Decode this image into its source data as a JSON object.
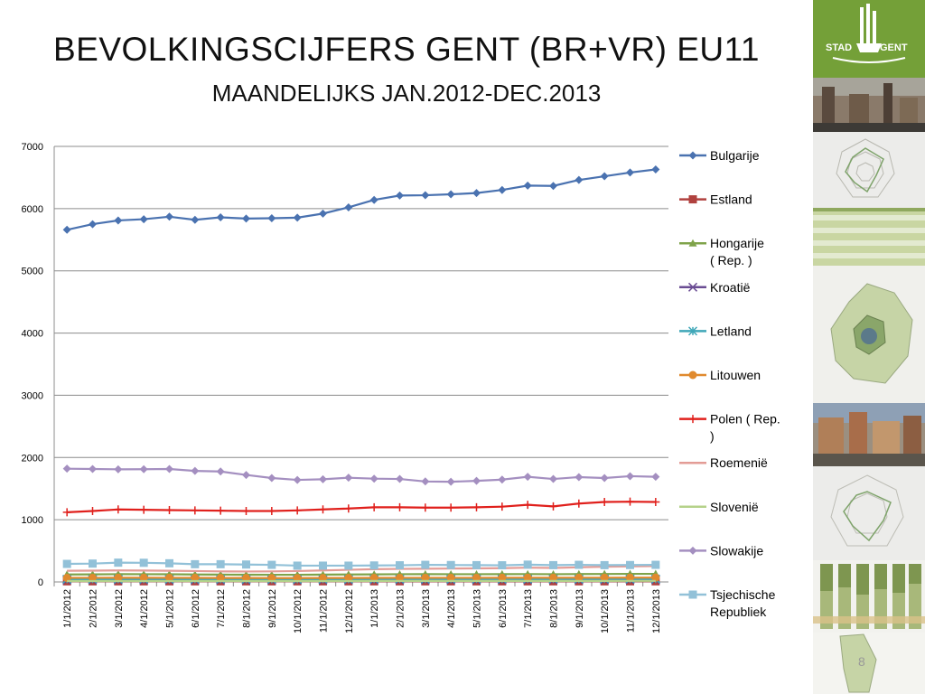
{
  "slide": {
    "title": "BEVOLKINGSCIJFERS GENT (BR+VR) EU11",
    "subtitle": "MAANDELIJKS JAN.2012-DEC.2013",
    "page_number": "8",
    "logo_text": "STAD GENT"
  },
  "chart_data": {
    "type": "line",
    "title": "",
    "xlabel": "",
    "ylabel": "",
    "ylim": [
      0,
      7000
    ],
    "yticks": [
      0,
      1000,
      2000,
      3000,
      4000,
      5000,
      6000,
      7000
    ],
    "grid": "horizontal",
    "legend_position": "right",
    "categories": [
      "1/1/2012",
      "2/1/2012",
      "3/1/2012",
      "4/1/2012",
      "5/1/2012",
      "6/1/2012",
      "7/1/2012",
      "8/1/2012",
      "9/1/2012",
      "10/1/2012",
      "11/1/2012",
      "12/1/2012",
      "1/1/2013",
      "2/1/2013",
      "3/1/2013",
      "4/1/2013",
      "5/1/2013",
      "6/1/2013",
      "7/1/2013",
      "8/1/2013",
      "9/1/2013",
      "10/1/2013",
      "11/1/2013",
      "12/1/2013"
    ],
    "series": [
      {
        "name": "Bulgarije",
        "color": "#4a72b0",
        "marker": "diamond",
        "values": [
          5660,
          5750,
          5810,
          5830,
          5870,
          5820,
          5860,
          5840,
          5845,
          5855,
          5920,
          6020,
          6140,
          6210,
          6215,
          6230,
          6250,
          6300,
          6370,
          6365,
          6460,
          6520,
          6580,
          6630
        ]
      },
      {
        "name": "Estland",
        "color": "#b0413e",
        "marker": "square",
        "values": [
          10,
          10,
          10,
          10,
          10,
          10,
          10,
          10,
          10,
          10,
          10,
          10,
          10,
          10,
          10,
          10,
          10,
          10,
          10,
          10,
          10,
          10,
          10,
          10
        ]
      },
      {
        "name": "Hongarije ( Rep. )",
        "color": "#7fa34a",
        "marker": "triangle",
        "values": [
          120,
          122,
          125,
          124,
          123,
          120,
          118,
          116,
          115,
          115,
          118,
          120,
          122,
          124,
          125,
          124,
          124,
          125,
          126,
          124,
          127,
          128,
          130,
          130
        ]
      },
      {
        "name": "Kroatië",
        "color": "#6a4c93",
        "marker": "x",
        "values": [
          30,
          30,
          31,
          31,
          31,
          30,
          30,
          30,
          30,
          30,
          30,
          31,
          31,
          32,
          32,
          32,
          32,
          33,
          33,
          33,
          34,
          34,
          35,
          35
        ]
      },
      {
        "name": "Letland",
        "color": "#3fa7b8",
        "marker": "asterisk",
        "values": [
          45,
          45,
          46,
          46,
          46,
          45,
          45,
          44,
          44,
          44,
          45,
          45,
          46,
          46,
          46,
          46,
          47,
          47,
          47,
          47,
          48,
          48,
          48,
          48
        ]
      },
      {
        "name": "Litouwen",
        "color": "#e08a2e",
        "marker": "circle",
        "values": [
          65,
          66,
          67,
          67,
          66,
          65,
          64,
          63,
          62,
          62,
          63,
          64,
          65,
          66,
          66,
          66,
          66,
          67,
          68,
          67,
          68,
          68,
          69,
          70
        ]
      },
      {
        "name": "Polen ( Rep. )",
        "color": "#e0201c",
        "marker": "plus",
        "values": [
          1120,
          1140,
          1165,
          1160,
          1155,
          1150,
          1145,
          1140,
          1140,
          1150,
          1165,
          1180,
          1200,
          1200,
          1195,
          1195,
          1200,
          1210,
          1240,
          1215,
          1260,
          1285,
          1290,
          1285
        ]
      },
      {
        "name": "Roemenië",
        "color": "#e39c96",
        "marker": "none",
        "values": [
          180,
          182,
          185,
          183,
          180,
          175,
          170,
          168,
          170,
          175,
          185,
          195,
          205,
          210,
          212,
          215,
          218,
          222,
          230,
          225,
          235,
          245,
          250,
          255
        ]
      },
      {
        "name": "Slovenië",
        "color": "#b5d28a",
        "marker": "none",
        "values": [
          15,
          15,
          15,
          15,
          15,
          15,
          15,
          15,
          15,
          15,
          15,
          15,
          16,
          16,
          16,
          16,
          16,
          16,
          16,
          16,
          16,
          16,
          17,
          17
        ]
      },
      {
        "name": "Slowakije",
        "color": "#a48fc0",
        "marker": "diamond",
        "values": [
          1820,
          1815,
          1810,
          1812,
          1815,
          1785,
          1775,
          1720,
          1670,
          1640,
          1650,
          1675,
          1660,
          1655,
          1615,
          1610,
          1625,
          1645,
          1690,
          1655,
          1685,
          1670,
          1700,
          1690
        ]
      },
      {
        "name": "Tsjechische Republiek",
        "color": "#92c1d8",
        "marker": "square",
        "values": [
          290,
          295,
          310,
          308,
          300,
          285,
          285,
          280,
          275,
          262,
          262,
          262,
          265,
          268,
          275,
          272,
          270,
          268,
          278,
          270,
          275,
          270,
          272,
          275
        ]
      }
    ]
  }
}
